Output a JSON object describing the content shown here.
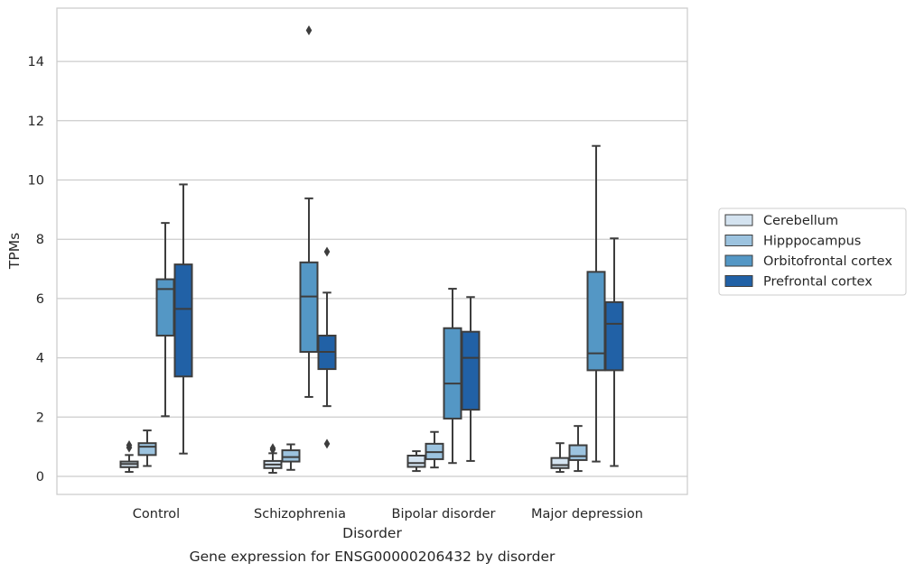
{
  "chart_data": {
    "type": "box",
    "caption": "Gene expression for ENSG00000206432 by disorder",
    "xlabel": "Disorder",
    "ylabel": "TPMs",
    "ylim": [
      -0.6,
      15.8
    ],
    "yticks": [
      0,
      2,
      4,
      6,
      8,
      10,
      12,
      14
    ],
    "grid": "horizontal",
    "legend_position": "right",
    "categories": [
      "Control",
      "Schizophrenia",
      "Bipolar disorder",
      "Major depression"
    ],
    "series": [
      {
        "name": "Cerebellum",
        "color": "#d4e3f0",
        "boxes": [
          {
            "whisker_low": 0.15,
            "q1": 0.31,
            "median": 0.42,
            "q3": 0.5,
            "whisker_high": 0.72,
            "outliers": [
              0.97,
              1.05
            ]
          },
          {
            "whisker_low": 0.12,
            "q1": 0.28,
            "median": 0.4,
            "q3": 0.52,
            "whisker_high": 0.78,
            "outliers": [
              0.9,
              0.95
            ]
          },
          {
            "whisker_low": 0.18,
            "q1": 0.32,
            "median": 0.45,
            "q3": 0.7,
            "whisker_high": 0.85,
            "outliers": []
          },
          {
            "whisker_low": 0.15,
            "q1": 0.28,
            "median": 0.38,
            "q3": 0.62,
            "whisker_high": 1.12,
            "outliers": []
          }
        ]
      },
      {
        "name": "Hipppocampus",
        "color": "#9cc3df",
        "boxes": [
          {
            "whisker_low": 0.35,
            "q1": 0.72,
            "median": 1.0,
            "q3": 1.12,
            "whisker_high": 1.55,
            "outliers": []
          },
          {
            "whisker_low": 0.22,
            "q1": 0.5,
            "median": 0.65,
            "q3": 0.88,
            "whisker_high": 1.08,
            "outliers": []
          },
          {
            "whisker_low": 0.3,
            "q1": 0.58,
            "median": 0.82,
            "q3": 1.1,
            "whisker_high": 1.5,
            "outliers": []
          },
          {
            "whisker_low": 0.18,
            "q1": 0.55,
            "median": 0.68,
            "q3": 1.05,
            "whisker_high": 1.7,
            "outliers": []
          }
        ]
      },
      {
        "name": "Orbitofrontal cortex",
        "color": "#5497c5",
        "boxes": [
          {
            "whisker_low": 2.03,
            "q1": 4.75,
            "median": 6.32,
            "q3": 6.65,
            "whisker_high": 8.55,
            "outliers": []
          },
          {
            "whisker_low": 2.68,
            "q1": 4.2,
            "median": 6.07,
            "q3": 7.22,
            "whisker_high": 9.38,
            "outliers": [
              15.05
            ]
          },
          {
            "whisker_low": 0.45,
            "q1": 1.95,
            "median": 3.13,
            "q3": 5.0,
            "whisker_high": 6.33,
            "outliers": []
          },
          {
            "whisker_low": 0.5,
            "q1": 3.58,
            "median": 4.15,
            "q3": 6.9,
            "whisker_high": 11.15,
            "outliers": []
          }
        ]
      },
      {
        "name": "Prefrontal cortex",
        "color": "#2161a6",
        "boxes": [
          {
            "whisker_low": 0.77,
            "q1": 3.37,
            "median": 5.65,
            "q3": 7.15,
            "whisker_high": 9.85,
            "outliers": []
          },
          {
            "whisker_low": 2.37,
            "q1": 3.62,
            "median": 4.2,
            "q3": 4.75,
            "whisker_high": 6.2,
            "outliers": [
              7.58,
              1.1
            ]
          },
          {
            "whisker_low": 0.52,
            "q1": 2.25,
            "median": 4.0,
            "q3": 4.88,
            "whisker_high": 6.05,
            "outliers": []
          },
          {
            "whisker_low": 0.35,
            "q1": 3.58,
            "median": 5.15,
            "q3": 5.88,
            "whisker_high": 8.03,
            "outliers": []
          }
        ]
      }
    ]
  }
}
